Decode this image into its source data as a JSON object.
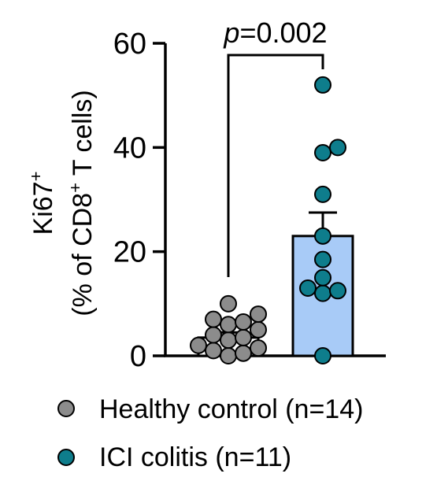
{
  "chart_data": {
    "type": "bar",
    "categories": [
      "Healthy control",
      "ICI colitis"
    ],
    "ylabel_main": "Ki67",
    "ylabel_main_sup": "+",
    "ylabel_sub_pre": "(% of CD8",
    "ylabel_sub_sup": "+",
    "ylabel_sub_post": " T cells)",
    "ylim": [
      0,
      60
    ],
    "yticks": [
      "0",
      "20",
      "40",
      "60"
    ],
    "bar_values": [
      3.5,
      23
    ],
    "sem": [
      1.0,
      4.5
    ],
    "points": [
      [
        0,
        0.5,
        1,
        1.5,
        2,
        3,
        3.5,
        4,
        5,
        6,
        6.5,
        7,
        8,
        10
      ],
      [
        0,
        12,
        12.5,
        13,
        15,
        18.5,
        23,
        31,
        39,
        40,
        52
      ]
    ],
    "significance": {
      "p_italic": "p",
      "p_rest": "=0.002"
    },
    "legend": [
      {
        "label": "Healthy control (n=14)",
        "color": "#8c8c8c"
      },
      {
        "label": "ICI colitis (n=11)",
        "color": "#0e7d8c"
      }
    ],
    "colors": {
      "control_point": "#8c8c8c",
      "colitis_point": "#0e7d8c",
      "colitis_bar": "#a8cbf7",
      "control_bar": "#ffffff"
    }
  }
}
